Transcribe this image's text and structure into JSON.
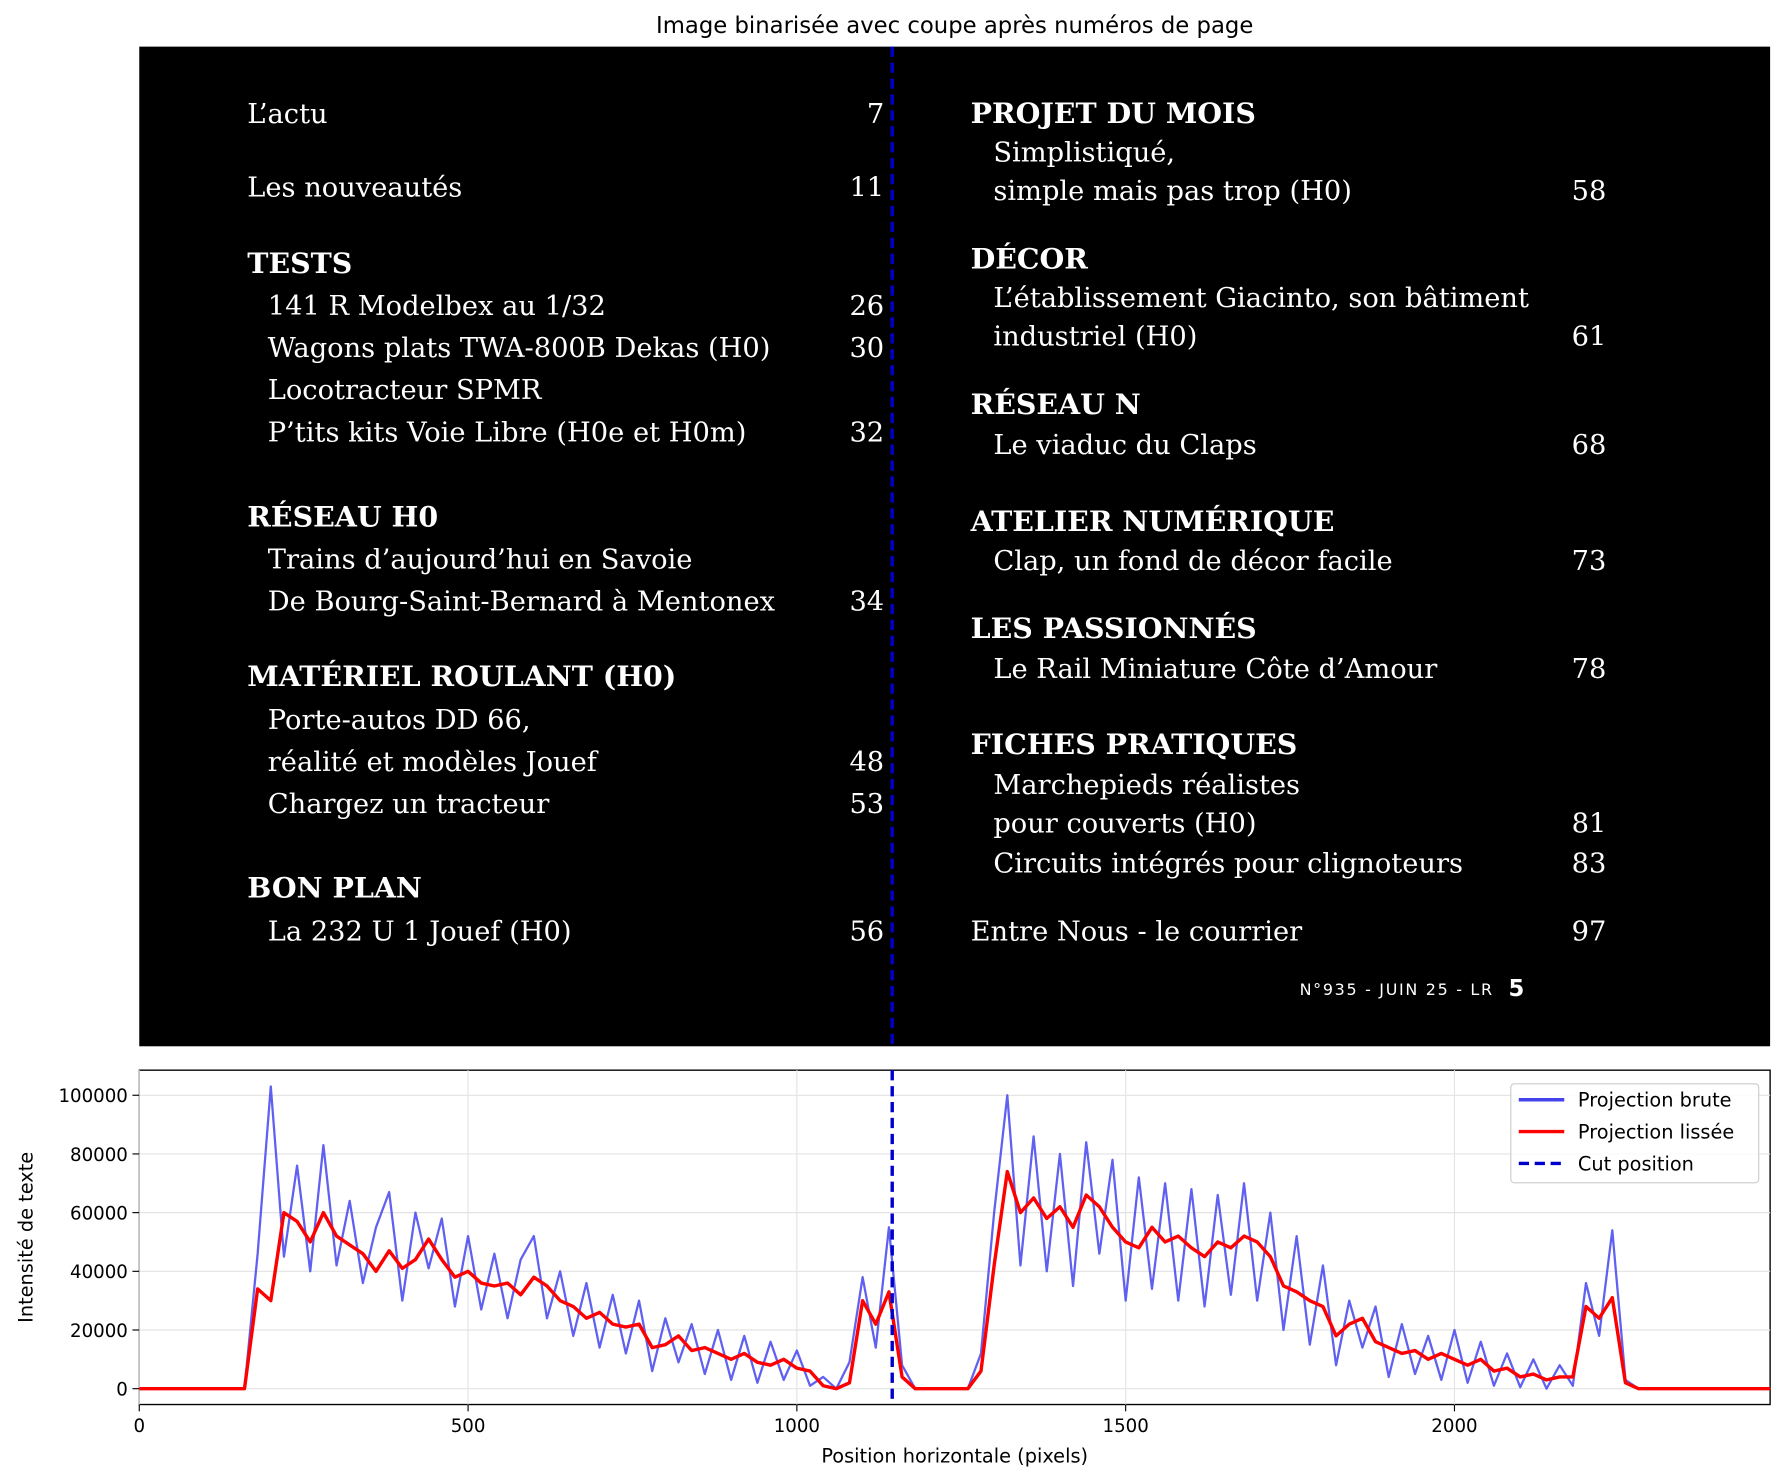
{
  "title": "Image binarisée avec coupe après numéros de page",
  "image_panel": {
    "left": [
      {
        "text": "L’actu",
        "page": 7
      },
      {
        "text": "Les nouveautés",
        "page": 11
      },
      {
        "text": "TESTS"
      },
      {
        "text": "141 R Modelbex au 1/32",
        "page": 26
      },
      {
        "text": "Wagons plats TWA-800B Dekas (H0)",
        "page": 30
      },
      {
        "text": "Locotracteur SPMR"
      },
      {
        "text": "P’tits kits Voie Libre (H0e et H0m)",
        "page": 32
      },
      {
        "text": "RÉSEAU H0"
      },
      {
        "text": "Trains d’aujourd’hui en Savoie"
      },
      {
        "text": "De Bourg-Saint-Bernard à Mentonex",
        "page": 34
      },
      {
        "text": "MATÉRIEL ROULANT (H0)"
      },
      {
        "text": "Porte-autos DD 66,"
      },
      {
        "text": "réalité et modèles Jouef",
        "page": 48
      },
      {
        "text": "Chargez un tracteur",
        "page": 53
      },
      {
        "text": "BON PLAN"
      },
      {
        "text": "La 232 U 1 Jouef (H0)",
        "page": 56
      }
    ],
    "right": [
      {
        "text": "PROJET DU MOIS"
      },
      {
        "text": "Simplistiqué,"
      },
      {
        "text": "simple mais pas trop (H0)",
        "page": 58
      },
      {
        "text": "DÉCOR"
      },
      {
        "text": "L’établissement Giacinto, son bâtiment"
      },
      {
        "text": "industriel (H0)",
        "page": 61
      },
      {
        "text": "RÉSEAU N"
      },
      {
        "text": "Le viaduc du Claps",
        "page": 68
      },
      {
        "text": "ATELIER NUMÉRIQUE"
      },
      {
        "text": "Clap, un fond de décor facile",
        "page": 73
      },
      {
        "text": "LES PASSIONNÉS"
      },
      {
        "text": "Le Rail Miniature Côte d’Amour",
        "page": 78
      },
      {
        "text": "FICHES PRATIQUES"
      },
      {
        "text": "Marchepieds réalistes"
      },
      {
        "text": "pour couverts (H0)",
        "page": 81
      },
      {
        "text": "Circuits intégrés pour clignoteurs",
        "page": 83
      },
      {
        "text": "Entre Nous - le courrier",
        "page": 97
      }
    ],
    "footer": {
      "issue": "N°935 - JUIN 25 - LR",
      "page": 5
    }
  },
  "chart_data": {
    "type": "line",
    "xlabel": "Position horizontale (pixels)",
    "ylabel": "Intensité de texte",
    "xlim": [
      0,
      2480
    ],
    "ylim": [
      -5400,
      108550
    ],
    "xticks": [
      0,
      500,
      1000,
      1500,
      2000
    ],
    "yticks": [
      0,
      20000,
      40000,
      60000,
      80000,
      100000
    ],
    "grid": true,
    "legend": "upper right",
    "x": [
      0,
      20,
      40,
      60,
      80,
      100,
      120,
      140,
      160,
      180,
      200,
      220,
      240,
      260,
      280,
      300,
      320,
      340,
      360,
      380,
      400,
      420,
      440,
      460,
      480,
      500,
      520,
      540,
      560,
      580,
      600,
      620,
      640,
      660,
      680,
      700,
      720,
      740,
      760,
      780,
      800,
      820,
      840,
      860,
      880,
      900,
      920,
      940,
      960,
      980,
      1000,
      1020,
      1040,
      1060,
      1080,
      1100,
      1120,
      1140,
      1160,
      1180,
      1200,
      1220,
      1240,
      1260,
      1280,
      1300,
      1320,
      1340,
      1360,
      1380,
      1400,
      1420,
      1440,
      1460,
      1480,
      1500,
      1520,
      1540,
      1560,
      1580,
      1600,
      1620,
      1640,
      1660,
      1680,
      1700,
      1720,
      1740,
      1760,
      1780,
      1800,
      1820,
      1840,
      1860,
      1880,
      1900,
      1920,
      1940,
      1960,
      1980,
      2000,
      2020,
      2040,
      2060,
      2080,
      2100,
      2120,
      2140,
      2160,
      2180,
      2200,
      2220,
      2240,
      2260,
      2280,
      2300,
      2320,
      2340,
      2360,
      2380,
      2400,
      2420,
      2440,
      2460,
      2480
    ],
    "series": [
      {
        "name": "Projection brute",
        "color": "#4444ee",
        "values": [
          0,
          0,
          0,
          0,
          0,
          0,
          0,
          0,
          0,
          46000,
          103000,
          45000,
          76000,
          40000,
          83000,
          42000,
          64000,
          36000,
          55000,
          67000,
          30000,
          60000,
          41000,
          58000,
          28000,
          52000,
          27000,
          46000,
          24000,
          44000,
          52000,
          24000,
          40000,
          18000,
          36000,
          14000,
          32000,
          12000,
          30000,
          6000,
          24000,
          9000,
          22000,
          5000,
          20000,
          3000,
          18000,
          2000,
          16000,
          3000,
          13000,
          1000,
          4000,
          0,
          9000,
          38000,
          14000,
          55000,
          8000,
          0,
          0,
          0,
          0,
          0,
          12000,
          60000,
          100000,
          42000,
          86000,
          40000,
          80000,
          35000,
          84000,
          46000,
          78000,
          30000,
          72000,
          34000,
          70000,
          30000,
          68000,
          28000,
          66000,
          32000,
          70000,
          30000,
          60000,
          20000,
          52000,
          15000,
          42000,
          8000,
          30000,
          14000,
          28000,
          4000,
          22000,
          5000,
          18000,
          3000,
          20000,
          2000,
          16000,
          1000,
          12000,
          500,
          10000,
          0,
          8000,
          1000,
          36000,
          18000,
          54000,
          3000,
          0,
          0,
          0,
          0,
          0,
          0,
          0,
          0,
          0,
          0,
          0
        ]
      },
      {
        "name": "Projection lissée",
        "color": "#ff0000",
        "values": [
          0,
          0,
          0,
          0,
          0,
          0,
          0,
          0,
          0,
          34000,
          30000,
          60000,
          57000,
          50000,
          60000,
          52000,
          49000,
          46000,
          40000,
          47000,
          41000,
          44000,
          51000,
          44000,
          38000,
          40000,
          36000,
          35000,
          36000,
          32000,
          38000,
          35000,
          30000,
          28000,
          24000,
          26000,
          22000,
          21000,
          22000,
          14000,
          15000,
          18000,
          13000,
          14000,
          12000,
          10000,
          12000,
          9000,
          8000,
          10000,
          7000,
          6000,
          1000,
          0,
          2000,
          30000,
          22000,
          33000,
          4000,
          0,
          0,
          0,
          0,
          0,
          6000,
          42000,
          74000,
          60000,
          65000,
          58000,
          62000,
          55000,
          66000,
          62000,
          55000,
          50000,
          48000,
          55000,
          50000,
          52000,
          48000,
          45000,
          50000,
          48000,
          52000,
          50000,
          45000,
          35000,
          33000,
          30000,
          28000,
          18000,
          22000,
          24000,
          16000,
          14000,
          12000,
          13000,
          10000,
          12000,
          10000,
          8000,
          10000,
          6000,
          7000,
          4000,
          5000,
          3000,
          4000,
          4000,
          28000,
          24000,
          31000,
          2000,
          0,
          0,
          0,
          0,
          0,
          0,
          0,
          0,
          0,
          0,
          0
        ]
      }
    ],
    "vlines": [
      {
        "name": "Cut position",
        "x": 1145,
        "color": "#0000cc"
      }
    ]
  }
}
